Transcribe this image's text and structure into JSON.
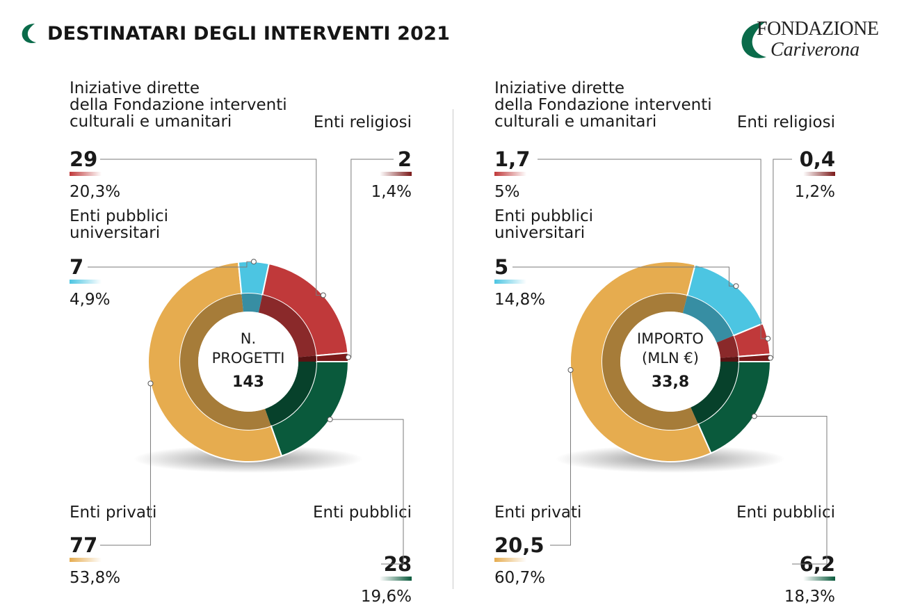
{
  "header": {
    "title": "DESTINATARI DEGLI INTERVENTI 2021",
    "logo_line1": "FONDAZIONE",
    "logo_line2": "Cariverona"
  },
  "colors": {
    "brand_green": "#0a6b4a",
    "iniziative": "#c0393a",
    "religiosi": "#7b1a1a",
    "pubblici": "#0a5a3c",
    "privati": "#e6ac4f",
    "universitari": "#4cc5e2"
  },
  "chart_data": [
    {
      "type": "donut",
      "center_label": [
        "N.",
        "PROGETTI"
      ],
      "center_value": "143",
      "total": 143,
      "slices": [
        {
          "key": "pubblici",
          "label": [
            "Enti pubblici"
          ],
          "value": 28,
          "value_text": "28",
          "percent": "19,6%",
          "color": "#0a5a3c"
        },
        {
          "key": "privati",
          "label": [
            "Enti privati"
          ],
          "value": 77,
          "value_text": "77",
          "percent": "53,8%",
          "color": "#e6ac4f"
        },
        {
          "key": "universitari",
          "label": [
            "Enti pubblici",
            "universitari"
          ],
          "value": 7,
          "value_text": "7",
          "percent": "4,9%",
          "color": "#4cc5e2"
        },
        {
          "key": "iniziative",
          "label": [
            "Iniziative dirette",
            "della Fondazione interventi",
            "culturali e umanitari"
          ],
          "value": 29,
          "value_text": "29",
          "percent": "20,3%",
          "color": "#c0393a"
        },
        {
          "key": "religiosi",
          "label": [
            "Enti religiosi"
          ],
          "value": 2,
          "value_text": "2",
          "percent": "1,4%",
          "color": "#7b1a1a"
        }
      ]
    },
    {
      "type": "donut",
      "center_label": [
        "IMPORTO",
        "(MLN €)"
      ],
      "center_value": "33,8",
      "total": 33.8,
      "slices": [
        {
          "key": "pubblici",
          "label": [
            "Enti pubblici"
          ],
          "value": 6.2,
          "value_text": "6,2",
          "percent": "18,3%",
          "color": "#0a5a3c"
        },
        {
          "key": "privati",
          "label": [
            "Enti privati"
          ],
          "value": 20.5,
          "value_text": "20,5",
          "percent": "60,7%",
          "color": "#e6ac4f"
        },
        {
          "key": "universitari",
          "label": [
            "Enti pubblici",
            "universitari"
          ],
          "value": 5,
          "value_text": "5",
          "percent": "14,8%",
          "color": "#4cc5e2"
        },
        {
          "key": "iniziative",
          "label": [
            "Iniziative dirette",
            "della Fondazione interventi",
            "culturali e umanitari"
          ],
          "value": 1.7,
          "value_text": "1,7",
          "percent": "5%",
          "color": "#c0393a"
        },
        {
          "key": "religiosi",
          "label": [
            "Enti religiosi"
          ],
          "value": 0.4,
          "value_text": "0,4",
          "percent": "1,2%",
          "color": "#7b1a1a"
        }
      ]
    }
  ]
}
